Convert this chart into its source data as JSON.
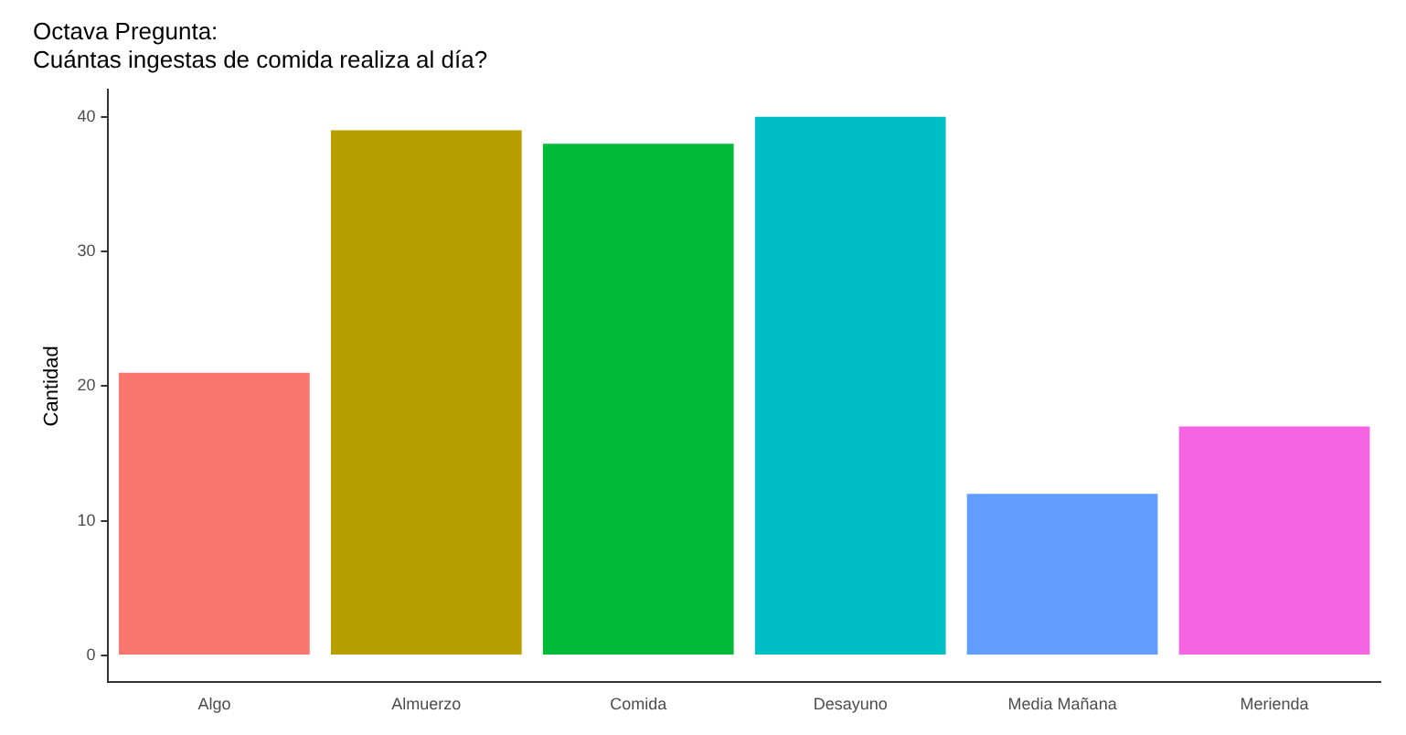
{
  "chart_data": {
    "type": "bar",
    "title": "Octava Pregunta:\nCuántas ingestas de comida realiza al día?",
    "ylabel": "Cantidad",
    "categories": [
      "Algo",
      "Almuerzo",
      "Comida",
      "Desayuno",
      "Media Mañana",
      "Merienda"
    ],
    "values": [
      21,
      39,
      38,
      40,
      12,
      17
    ],
    "colors": [
      "#f8766d",
      "#b79f00",
      "#00ba38",
      "#00bfc4",
      "#619cff",
      "#f564e3"
    ],
    "ylim": [
      -2,
      42
    ],
    "yticks": [
      0,
      10,
      20,
      30,
      40
    ],
    "grid": false,
    "legend": false
  }
}
